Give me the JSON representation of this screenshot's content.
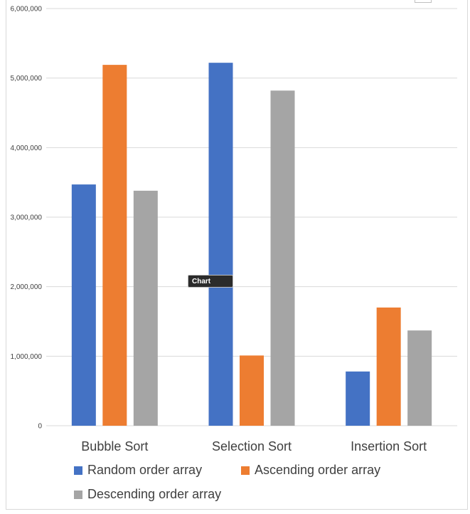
{
  "chart_data": {
    "type": "bar",
    "categories": [
      "Bubble Sort",
      "Selection Sort",
      "Insertion Sort"
    ],
    "series": [
      {
        "name": "Random order array",
        "color": "#4472C4",
        "values": [
          3470000,
          5220000,
          780000
        ]
      },
      {
        "name": "Ascending order array",
        "color": "#ED7D31",
        "values": [
          5190000,
          1010000,
          1700000
        ]
      },
      {
        "name": "Descending order array",
        "color": "#A5A5A5",
        "values": [
          3380000,
          4820000,
          1370000
        ]
      }
    ],
    "ylim": [
      0,
      6000000
    ],
    "yticks": [
      0,
      1000000,
      2000000,
      3000000,
      4000000,
      5000000,
      6000000
    ],
    "ytick_labels": [
      "0",
      "1,000,000",
      "2,000,000",
      "3,000,000",
      "4,000,000",
      "5,000,000",
      "6,000,000"
    ],
    "grid": true,
    "legend_position": "bottom",
    "gridline_color": "#d9d9d9",
    "label_color": "#404040"
  },
  "tooltip": {
    "text": "Chart"
  }
}
